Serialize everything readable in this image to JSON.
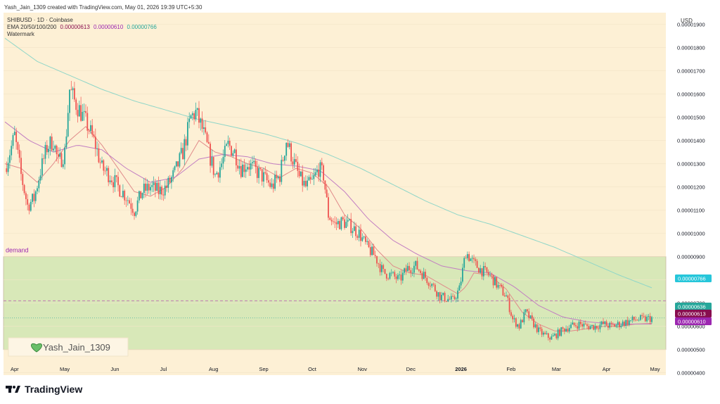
{
  "header": {
    "created_line": "Yash_Jain_1309 created with TradingView.com, May 01, 2026 19:39 UTC+5:30"
  },
  "legend": {
    "symbol_line": "SHIBUSD · 1D · Coinbase",
    "ema_label": "EMA 20/50/100/200",
    "ema_values": [
      "0.00000613",
      "0.00000610",
      "0.00000766"
    ],
    "watermark_label": "Watermark"
  },
  "currency": "USD",
  "zone_label": "demand",
  "watermark_user": "Yash_Jain_1309",
  "brand": "TradingView",
  "colors": {
    "background": "#fdf0d5",
    "up": "#26a69a",
    "down": "#ef5350",
    "ema20": "#e08a8a",
    "ema50": "#c27ec2",
    "ema200": "#8fd6c8",
    "zone_fill": "#d8e8b8",
    "zone_label": "#9c27b0",
    "ema200_tag": "#26c6da",
    "price_tag": "#26a69a",
    "ema20_tag": "#880e4f",
    "ema50_tag": "#9c27b0"
  },
  "chart_data": {
    "type": "candlestick",
    "symbol": "SHIBUSD",
    "timeframe": "1D",
    "exchange": "Coinbase",
    "y_axis": {
      "ticks": [
        "0.00001900",
        "0.00001800",
        "0.00001700",
        "0.00001600",
        "0.00001500",
        "0.00001400",
        "0.00001300",
        "0.00001200",
        "0.00001100",
        "0.00001000",
        "0.00000900",
        "0.00000800",
        "0.00000700",
        "0.00000600",
        "0.00000500",
        "0.00000400"
      ],
      "range": [
        3.9e-06,
        1.95e-05
      ]
    },
    "x_axis": {
      "labels": [
        "Apr",
        "May",
        "Jun",
        "Jul",
        "Aug",
        "Sep",
        "Oct",
        "Nov",
        "Dec",
        "2026",
        "Feb",
        "Mar",
        "Apr",
        "May"
      ],
      "label_days": [
        6,
        37,
        68,
        98,
        129,
        160,
        190,
        221,
        251,
        282,
        313,
        341,
        372,
        402
      ]
    },
    "close_path": [
      [
        0,
        1.28e-05
      ],
      [
        6,
        1.42e-05
      ],
      [
        10,
        1.25e-05
      ],
      [
        14,
        1.12e-05
      ],
      [
        18,
        1.15e-05
      ],
      [
        22,
        1.27e-05
      ],
      [
        26,
        1.37e-05
      ],
      [
        30,
        1.4e-05
      ],
      [
        33,
        1.3e-05
      ],
      [
        37,
        1.35e-05
      ],
      [
        40,
        1.62e-05
      ],
      [
        43,
        1.57e-05
      ],
      [
        47,
        1.52e-05
      ],
      [
        52,
        1.45e-05
      ],
      [
        56,
        1.38e-05
      ],
      [
        60,
        1.28e-05
      ],
      [
        65,
        1.25e-05
      ],
      [
        70,
        1.2e-05
      ],
      [
        75,
        1.16e-05
      ],
      [
        80,
        1.1e-05
      ],
      [
        85,
        1.18e-05
      ],
      [
        90,
        1.2e-05
      ],
      [
        95,
        1.18e-05
      ],
      [
        100,
        1.2e-05
      ],
      [
        105,
        1.26e-05
      ],
      [
        110,
        1.35e-05
      ],
      [
        115,
        1.5e-05
      ],
      [
        118,
        1.52e-05
      ],
      [
        122,
        1.45e-05
      ],
      [
        126,
        1.35e-05
      ],
      [
        130,
        1.25e-05
      ],
      [
        134,
        1.3e-05
      ],
      [
        138,
        1.38e-05
      ],
      [
        142,
        1.35e-05
      ],
      [
        146,
        1.28e-05
      ],
      [
        150,
        1.3e-05
      ],
      [
        155,
        1.27e-05
      ],
      [
        160,
        1.24e-05
      ],
      [
        165,
        1.2e-05
      ],
      [
        170,
        1.25e-05
      ],
      [
        174,
        1.4e-05
      ],
      [
        178,
        1.32e-05
      ],
      [
        182,
        1.24e-05
      ],
      [
        186,
        1.2e-05
      ],
      [
        190,
        1.22e-05
      ],
      [
        194,
        1.28e-05
      ],
      [
        197,
        1.25e-05
      ],
      [
        200,
        1.08e-05
      ],
      [
        204,
        1.04e-05
      ],
      [
        209,
        1.05e-05
      ],
      [
        214,
        1.03e-05
      ],
      [
        219,
        1e-05
      ],
      [
        224,
        9.4e-06
      ],
      [
        229,
        9e-06
      ],
      [
        234,
        8.3e-06
      ],
      [
        239,
        8.2e-06
      ],
      [
        244,
        8e-06
      ],
      [
        249,
        8.5e-06
      ],
      [
        254,
        8.6e-06
      ],
      [
        259,
        8.2e-06
      ],
      [
        264,
        7.8e-06
      ],
      [
        269,
        7.3e-06
      ],
      [
        273,
        7.2e-06
      ],
      [
        277,
        7.1e-06
      ],
      [
        281,
        7.6e-06
      ],
      [
        285,
        9.2e-06
      ],
      [
        290,
        8.7e-06
      ],
      [
        295,
        8.4e-06
      ],
      [
        300,
        8.2e-06
      ],
      [
        305,
        7.7e-06
      ],
      [
        310,
        7.3e-06
      ],
      [
        314,
        6.3e-06
      ],
      [
        318,
        6e-06
      ],
      [
        322,
        6.6e-06
      ],
      [
        326,
        6.2e-06
      ],
      [
        330,
        5.8e-06
      ],
      [
        334,
        5.6e-06
      ],
      [
        338,
        5.5e-06
      ],
      [
        342,
        5.7e-06
      ],
      [
        346,
        5.9e-06
      ],
      [
        350,
        6e-06
      ],
      [
        355,
        6.1e-06
      ],
      [
        360,
        6e-06
      ],
      [
        365,
        6e-06
      ],
      [
        370,
        6.1e-06
      ],
      [
        375,
        6e-06
      ],
      [
        380,
        6.1e-06
      ],
      [
        385,
        6.2e-06
      ],
      [
        390,
        6.3e-06
      ],
      [
        395,
        6.3e-06
      ],
      [
        400,
        6.36e-06
      ]
    ],
    "ema_lines": [
      {
        "name": "EMA 20",
        "path": [
          [
            0,
            1.3e-05
          ],
          [
            10,
            1.28e-05
          ],
          [
            20,
            1.22e-05
          ],
          [
            30,
            1.3e-05
          ],
          [
            40,
            1.4e-05
          ],
          [
            50,
            1.46e-05
          ],
          [
            60,
            1.38e-05
          ],
          [
            70,
            1.28e-05
          ],
          [
            80,
            1.18e-05
          ],
          [
            90,
            1.16e-05
          ],
          [
            100,
            1.2e-05
          ],
          [
            110,
            1.28e-05
          ],
          [
            120,
            1.4e-05
          ],
          [
            130,
            1.35e-05
          ],
          [
            140,
            1.33e-05
          ],
          [
            150,
            1.3e-05
          ],
          [
            160,
            1.28e-05
          ],
          [
            170,
            1.24e-05
          ],
          [
            180,
            1.28e-05
          ],
          [
            190,
            1.26e-05
          ],
          [
            200,
            1.2e-05
          ],
          [
            210,
            1.08e-05
          ],
          [
            220,
            1.02e-05
          ],
          [
            230,
            9.3e-06
          ],
          [
            240,
            8.6e-06
          ],
          [
            250,
            8.3e-06
          ],
          [
            260,
            8.2e-06
          ],
          [
            270,
            7.8e-06
          ],
          [
            280,
            7.4e-06
          ],
          [
            285,
            7.7e-06
          ],
          [
            290,
            8.3e-06
          ],
          [
            300,
            8.2e-06
          ],
          [
            310,
            7.6e-06
          ],
          [
            320,
            6.6e-06
          ],
          [
            330,
            6.1e-06
          ],
          [
            340,
            5.8e-06
          ],
          [
            350,
            5.8e-06
          ],
          [
            360,
            5.9e-06
          ],
          [
            370,
            6e-06
          ],
          [
            380,
            6e-06
          ],
          [
            390,
            6.1e-06
          ],
          [
            400,
            6.13e-06
          ]
        ]
      },
      {
        "name": "EMA 50",
        "path": [
          [
            0,
            1.48e-05
          ],
          [
            15,
            1.4e-05
          ],
          [
            30,
            1.35e-05
          ],
          [
            45,
            1.38e-05
          ],
          [
            60,
            1.36e-05
          ],
          [
            75,
            1.28e-05
          ],
          [
            90,
            1.22e-05
          ],
          [
            105,
            1.24e-05
          ],
          [
            120,
            1.32e-05
          ],
          [
            135,
            1.34e-05
          ],
          [
            150,
            1.33e-05
          ],
          [
            165,
            1.3e-05
          ],
          [
            180,
            1.29e-05
          ],
          [
            195,
            1.27e-05
          ],
          [
            210,
            1.18e-05
          ],
          [
            225,
            1.06e-05
          ],
          [
            240,
            9.7e-06
          ],
          [
            255,
            9.1e-06
          ],
          [
            270,
            8.6e-06
          ],
          [
            285,
            8.4e-06
          ],
          [
            300,
            8.3e-06
          ],
          [
            315,
            7.7e-06
          ],
          [
            330,
            6.9e-06
          ],
          [
            345,
            6.4e-06
          ],
          [
            360,
            6.2e-06
          ],
          [
            375,
            6.1e-06
          ],
          [
            390,
            6.1e-06
          ],
          [
            400,
            6.1e-06
          ]
        ]
      },
      {
        "name": "EMA 200",
        "path": [
          [
            0,
            1.84e-05
          ],
          [
            20,
            1.74e-05
          ],
          [
            40,
            1.68e-05
          ],
          [
            60,
            1.62e-05
          ],
          [
            80,
            1.57e-05
          ],
          [
            100,
            1.53e-05
          ],
          [
            120,
            1.49e-05
          ],
          [
            140,
            1.46e-05
          ],
          [
            160,
            1.43e-05
          ],
          [
            180,
            1.39e-05
          ],
          [
            200,
            1.34e-05
          ],
          [
            220,
            1.28e-05
          ],
          [
            240,
            1.21e-05
          ],
          [
            260,
            1.14e-05
          ],
          [
            280,
            1.08e-05
          ],
          [
            300,
            1.04e-05
          ],
          [
            320,
            9.9e-06
          ],
          [
            340,
            9.4e-06
          ],
          [
            360,
            8.8e-06
          ],
          [
            380,
            8.2e-06
          ],
          [
            400,
            7.66e-06
          ]
        ]
      }
    ],
    "demand_zone": [
      5e-06,
      9e-06
    ],
    "dashed_level": 7.1e-06,
    "dotted_level": 6.36e-06,
    "price_tags": [
      {
        "label": "0.00000766",
        "value": 7.66e-06,
        "role": "ema200"
      },
      {
        "label": "0.00000636",
        "value": 6.36e-06,
        "role": "price"
      },
      {
        "label": "0.00000613",
        "value": 6.13e-06,
        "role": "ema20"
      },
      {
        "label": "0.00000610",
        "value": 6.1e-06,
        "role": "ema50"
      }
    ]
  }
}
